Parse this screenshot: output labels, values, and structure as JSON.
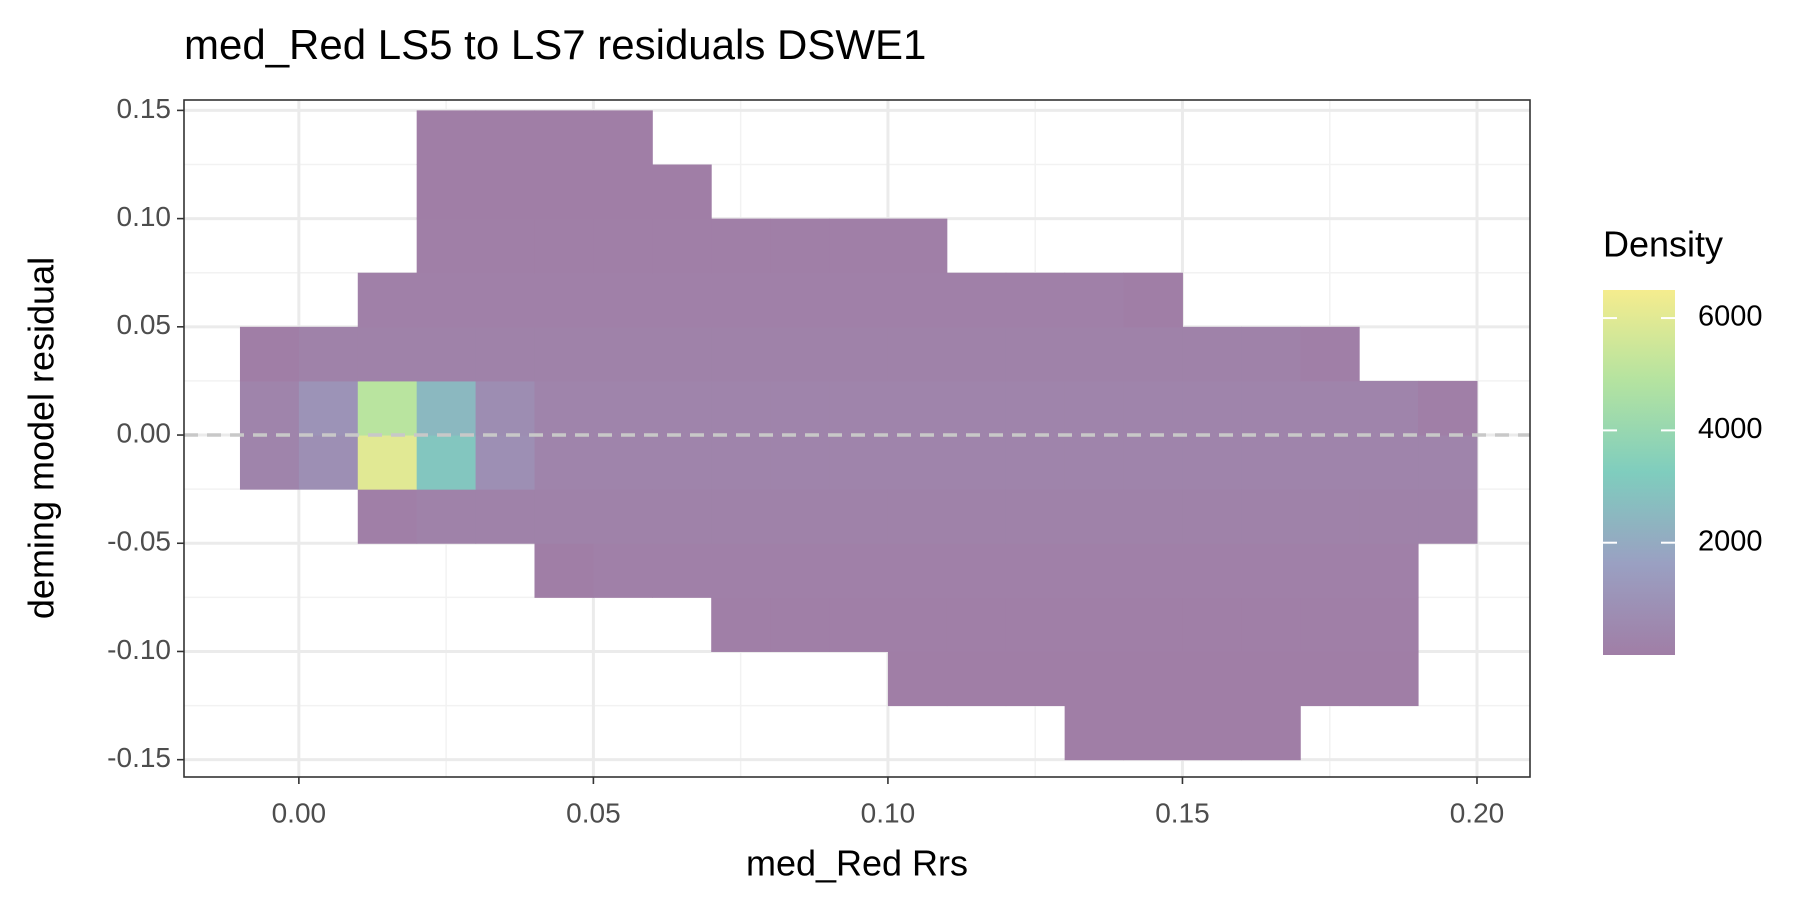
{
  "chart_data": {
    "type": "bin2d",
    "title": "med_Red LS5 to LS7 residuals DSWE1",
    "x_label": "med_Red Rrs",
    "y_label": "deming model residual",
    "x_bins": [
      -0.01,
      0,
      0.01,
      0.02,
      0.03,
      0.04,
      0.05,
      0.06,
      0.07,
      0.08,
      0.09,
      0.1,
      0.11,
      0.12,
      0.13,
      0.14,
      0.15,
      0.16,
      0.17,
      0.18,
      0.19,
      0.2
    ],
    "y_bins": [
      -0.15,
      -0.125,
      -0.1,
      -0.075,
      -0.05,
      -0.025,
      0,
      0.025,
      0.05,
      0.075,
      0.1,
      0.125,
      0.15
    ],
    "values": [
      [
        null,
        null,
        null,
        null,
        null,
        null,
        null,
        null,
        null,
        null,
        null,
        null,
        null,
        null,
        5,
        5,
        5,
        5,
        null,
        null,
        null
      ],
      [
        null,
        null,
        null,
        null,
        null,
        null,
        null,
        null,
        null,
        null,
        null,
        10,
        10,
        10,
        10,
        10,
        10,
        10,
        10,
        10,
        null
      ],
      [
        null,
        null,
        null,
        null,
        null,
        null,
        null,
        null,
        30,
        30,
        30,
        30,
        30,
        30,
        30,
        30,
        30,
        30,
        30,
        30,
        null
      ],
      [
        null,
        null,
        null,
        null,
        null,
        20,
        100,
        100,
        100,
        100,
        100,
        100,
        100,
        100,
        100,
        100,
        100,
        100,
        100,
        100,
        null
      ],
      [
        null,
        null,
        30,
        200,
        200,
        200,
        200,
        200,
        200,
        200,
        200,
        200,
        200,
        200,
        200,
        200,
        200,
        200,
        200,
        200,
        200
      ],
      [
        300,
        800,
        6000,
        3000,
        800,
        300,
        300,
        300,
        300,
        300,
        300,
        300,
        300,
        300,
        300,
        300,
        300,
        300,
        300,
        300,
        300
      ],
      [
        300,
        1000,
        5000,
        2500,
        700,
        300,
        300,
        300,
        300,
        300,
        300,
        300,
        300,
        300,
        300,
        300,
        300,
        300,
        300,
        300,
        50
      ],
      [
        20,
        200,
        200,
        200,
        200,
        200,
        200,
        200,
        200,
        200,
        200,
        200,
        200,
        200,
        200,
        200,
        200,
        200,
        30,
        null,
        null
      ],
      [
        null,
        null,
        100,
        100,
        100,
        100,
        100,
        100,
        100,
        100,
        100,
        100,
        100,
        100,
        100,
        20,
        null,
        null,
        null,
        null,
        null
      ],
      [
        null,
        null,
        null,
        30,
        30,
        30,
        30,
        30,
        30,
        30,
        30,
        30,
        null,
        null,
        null,
        null,
        null,
        null,
        null,
        null,
        null
      ],
      [
        null,
        null,
        null,
        10,
        10,
        10,
        10,
        10,
        null,
        null,
        null,
        null,
        null,
        null,
        null,
        null,
        null,
        null,
        null,
        null,
        null
      ],
      [
        null,
        null,
        null,
        5,
        5,
        5,
        5,
        null,
        null,
        null,
        null,
        null,
        null,
        null,
        null,
        null,
        null,
        null,
        null,
        null,
        null
      ]
    ],
    "xlim": [
      -0.0195,
      0.209
    ],
    "ylim": [
      -0.158,
      0.1548
    ],
    "xticks": [
      {
        "value": 0,
        "label": "0.00"
      },
      {
        "value": 0.05,
        "label": "0.05"
      },
      {
        "value": 0.1,
        "label": "0.10"
      },
      {
        "value": 0.15,
        "label": "0.15"
      },
      {
        "value": 0.2,
        "label": "0.20"
      }
    ],
    "yticks": [
      {
        "value": -0.15,
        "label": "-0.15"
      },
      {
        "value": -0.1,
        "label": "-0.10"
      },
      {
        "value": -0.05,
        "label": "-0.05"
      },
      {
        "value": 0,
        "label": "0.00"
      },
      {
        "value": 0.05,
        "label": "0.05"
      },
      {
        "value": 0.1,
        "label": "0.10"
      },
      {
        "value": 0.15,
        "label": "0.15"
      }
    ],
    "grid": true,
    "reference_line": {
      "y": 0,
      "color": "#c8c8c8"
    },
    "legend": {
      "title": "Density",
      "clim": [
        0,
        6500
      ],
      "ticks": [
        2000,
        4000,
        6000
      ],
      "colors": [
        "#a07ea6",
        "#9aa0c2",
        "#7fcdbe",
        "#b4e3a0",
        "#f5ec8e"
      ]
    }
  }
}
